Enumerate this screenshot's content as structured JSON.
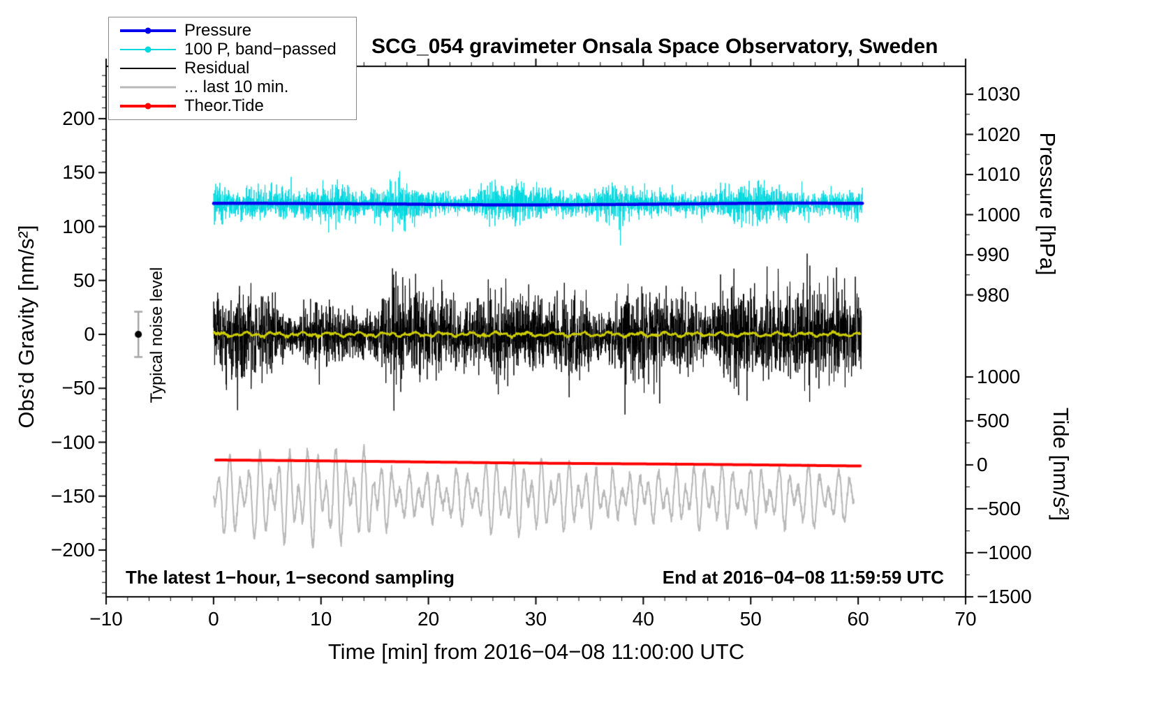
{
  "chart_data": {
    "type": "line",
    "title": "SCG_054 gravimeter Onsala Space Observatory, Sweden",
    "xlabel": "Time [min] from 2016−04−08 11:00:00 UTC",
    "x_axis": {
      "range": [
        -10,
        70
      ],
      "major_ticks": [
        -10,
        0,
        10,
        20,
        30,
        40,
        50,
        60,
        70
      ],
      "tick_labels": [
        "−10",
        "0",
        "10",
        "20",
        "30",
        "40",
        "50",
        "60",
        "70"
      ],
      "minor_step": 2
    },
    "axes": {
      "gravity": {
        "label": "Obs’d Gravity [nm/s²]",
        "range": [
          -243,
          249
        ],
        "major_ticks": [
          200,
          150,
          100,
          50,
          0,
          -50,
          -100,
          -150,
          -200
        ],
        "tick_labels": [
          "200",
          "150",
          "100",
          "50",
          "0",
          "−50",
          "−100",
          "−150",
          "−200"
        ],
        "minor_step": 10
      },
      "pressure": {
        "label": "Pressure [hPa]",
        "range": [
          980,
          1030
        ],
        "major_ticks": [
          1030,
          1020,
          1010,
          1000,
          990,
          980
        ],
        "tick_labels": [
          "1030",
          "1020",
          "1010",
          "1000",
          "990",
          "980"
        ],
        "minor_step": 5
      },
      "tide": {
        "label": "Tide [nm/s²]",
        "range": [
          -1500,
          1000
        ],
        "major_ticks": [
          1000,
          500,
          0,
          -500,
          -1000,
          -1500
        ],
        "tick_labels": [
          "1000",
          "500",
          "0",
          "−500",
          "−1000",
          "−1500"
        ],
        "minor_step": 250
      }
    },
    "legend": {
      "items": [
        {
          "label": "Pressure",
          "color": "#0000ee",
          "marker": true,
          "thickness": 4
        },
        {
          "label": "100 P, band−passed",
          "color": "#00d8e0",
          "marker": true,
          "thickness": 2
        },
        {
          "label": "Residual",
          "color": "#000000",
          "marker": false,
          "thickness": 2
        },
        {
          "label": "... last 10 min.",
          "color": "#b8b8b8",
          "marker": false,
          "thickness": 3
        },
        {
          "label": "Theor.Tide",
          "color": "#ff0000",
          "marker": true,
          "thickness": 4
        }
      ]
    },
    "annotations": {
      "sampling": "The latest 1−hour, 1−second sampling",
      "end_time": "End at 2016−04−08 11:59:59 UTC"
    },
    "noise_marker": {
      "label": "Typical noise level",
      "x": -7,
      "value": 0,
      "error": 21
    },
    "series": [
      {
        "name": "pressure",
        "axis": "gravity",
        "color": "#0000ee",
        "width": 4.5,
        "x_start": 0,
        "x_end": 60.4,
        "baseline": 121,
        "value_hpa": 1003
      },
      {
        "name": "pressure-bandpassed",
        "axis": "gravity",
        "color": "#00d8e0",
        "width": 1,
        "x_start": 0,
        "x_end": 60.4,
        "baseline": 121,
        "sigma_base": 3.5,
        "sigma_var": 7
      },
      {
        "name": "residual",
        "axis": "gravity",
        "color": "#000000",
        "width": 1,
        "x_start": 0,
        "x_end": 60.3,
        "baseline": 0,
        "sigma_base": 9,
        "sigma_var": 14
      },
      {
        "name": "residual-smoothed",
        "axis": "gravity",
        "color": "#cdcd00",
        "width": 2.5,
        "x_start": 0,
        "x_end": 60.2,
        "baseline": 0,
        "amplitude": 2
      },
      {
        "name": "residual-last-10min",
        "axis": "gravity",
        "color": "#b8b8b8",
        "width": 2,
        "x_start": 0,
        "x_end": 59.6,
        "baseline": -150,
        "amp_base": 16,
        "amp_var": 22
      },
      {
        "name": "theoretical-tide",
        "axis": "tide",
        "color": "#ff0000",
        "width": 4,
        "x_start": 0.2,
        "x_end": 60.2,
        "value_start": 55,
        "value_end": -12
      }
    ]
  }
}
